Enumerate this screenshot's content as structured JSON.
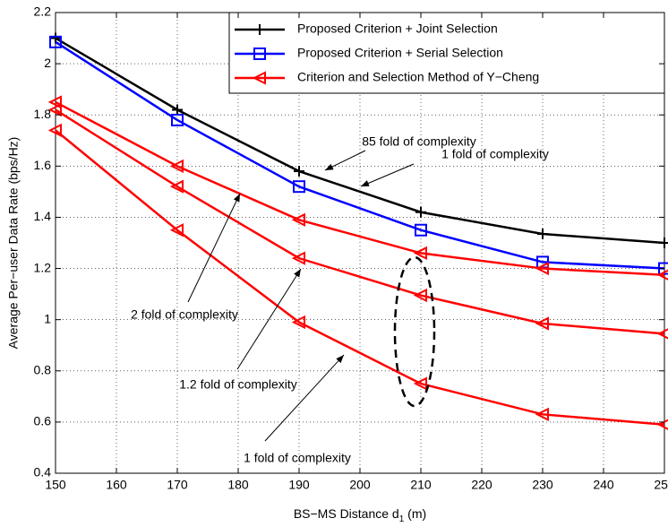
{
  "chart_data": {
    "type": "line",
    "xlabel": [
      "BS−MS Distance d",
      "1",
      " (m)"
    ],
    "ylabel": "Average Per−user Data Rate (bps/Hz)",
    "x": [
      150,
      170,
      190,
      210,
      230,
      250
    ],
    "series": [
      {
        "name": "Proposed Criterion + Joint Selection",
        "color": "#000000",
        "marker": "plus",
        "values": [
          2.1,
          1.82,
          1.58,
          1.42,
          1.335,
          1.3
        ]
      },
      {
        "name": "Proposed Criterion + Serial Selection",
        "color": "#0000ff",
        "marker": "square",
        "values": [
          2.085,
          1.78,
          1.52,
          1.35,
          1.225,
          1.2
        ]
      },
      {
        "name": "Criterion and Selection Method of Y−Cheng",
        "color": "#ff0000",
        "marker": "triangle-left",
        "values": [
          1.85,
          1.6,
          1.39,
          1.26,
          1.2,
          1.175
        ]
      },
      {
        "color": "#ff0000",
        "marker": "triangle-left",
        "values": [
          1.82,
          1.52,
          1.24,
          1.095,
          0.985,
          0.945
        ]
      },
      {
        "color": "#ff0000",
        "marker": "triangle-left",
        "values": [
          1.74,
          1.35,
          0.99,
          0.75,
          0.63,
          0.59
        ]
      }
    ],
    "xlim": [
      150,
      250
    ],
    "xticks": [
      150,
      160,
      170,
      180,
      190,
      200,
      210,
      220,
      230,
      240,
      250
    ],
    "ylim": [
      0.4,
      2.2
    ],
    "yticks": [
      0.4,
      0.6,
      0.8,
      1,
      1.2,
      1.4,
      1.6,
      1.8,
      2,
      2.2
    ],
    "grid": true,
    "legend": "upper right",
    "annotations": [
      "85 fold of complexity",
      "1 fold of complexity",
      "2 fold of complexity",
      "1.2 fold of complexity",
      "1 fold of complexity"
    ]
  }
}
